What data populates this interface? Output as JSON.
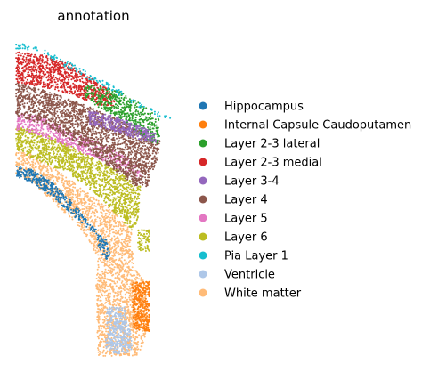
{
  "chart_data": {
    "type": "scatter",
    "title": "annotation",
    "xlabel": "",
    "ylabel": "",
    "grid": false,
    "axes_visible": false,
    "legend_position": "right",
    "series": [
      {
        "name": "Hippocampus",
        "color": "#1f77b4",
        "regions": [
          [
            [
              18,
              186
            ],
            [
              35,
              190
            ],
            [
              55,
              202
            ],
            [
              80,
              225
            ],
            [
              100,
              250
            ],
            [
              108,
              258
            ],
            [
              105,
              262
            ],
            [
              85,
              245
            ],
            [
              60,
              222
            ],
            [
              35,
              205
            ],
            [
              18,
              198
            ]
          ],
          [
            [
              108,
              262
            ],
            [
              120,
              270
            ],
            [
              124,
              290
            ],
            [
              118,
              292
            ],
            [
              110,
              275
            ]
          ]
        ],
        "density": 0.28
      },
      {
        "name": "Internal Capsule Caudoputamen",
        "color": "#ff7f0e",
        "regions": [
          [
            [
              148,
              318
            ],
            [
              168,
              316
            ],
            [
              168,
              372
            ],
            [
              150,
              370
            ]
          ]
        ],
        "density": 0.35
      },
      {
        "name": "Layer 2-3 lateral",
        "color": "#2ca02c",
        "regions": [
          [
            [
              95,
              95
            ],
            [
              130,
              100
            ],
            [
              160,
              118
            ],
            [
              178,
              132
            ],
            [
              180,
              160
            ],
            [
              170,
              162
            ],
            [
              150,
              145
            ],
            [
              130,
              130
            ],
            [
              110,
              120
            ],
            [
              95,
              108
            ]
          ]
        ],
        "density": 0.22
      },
      {
        "name": "Layer 2-3 medial",
        "color": "#d62728",
        "regions": [
          [
            [
              18,
              58
            ],
            [
              50,
              62
            ],
            [
              80,
              72
            ],
            [
              105,
              90
            ],
            [
              125,
              102
            ],
            [
              130,
              120
            ],
            [
              110,
              118
            ],
            [
              90,
              110
            ],
            [
              60,
              100
            ],
            [
              30,
              95
            ],
            [
              18,
              92
            ]
          ]
        ],
        "density": 0.25
      },
      {
        "name": "Layer 3-4",
        "color": "#9467bd",
        "regions": [
          [
            [
              100,
              125
            ],
            [
              120,
              128
            ],
            [
              150,
              138
            ],
            [
              175,
              150
            ],
            [
              178,
              160
            ],
            [
              160,
              158
            ],
            [
              130,
              148
            ],
            [
              100,
              140
            ]
          ]
        ],
        "density": 0.3
      },
      {
        "name": "Layer 4",
        "color": "#8c564b",
        "regions": [
          [
            [
              18,
              92
            ],
            [
              45,
              100
            ],
            [
              80,
              112
            ],
            [
              110,
              124
            ],
            [
              145,
              140
            ],
            [
              180,
              158
            ],
            [
              178,
              175
            ],
            [
              165,
              210
            ],
            [
              150,
              208
            ],
            [
              120,
              185
            ],
            [
              85,
              160
            ],
            [
              50,
              140
            ],
            [
              18,
              130
            ]
          ]
        ],
        "density": 0.25
      },
      {
        "name": "Layer 5",
        "color": "#e377c2",
        "regions": [
          [
            [
              18,
              125
            ],
            [
              50,
              132
            ],
            [
              80,
              148
            ],
            [
              110,
              160
            ],
            [
              140,
              175
            ],
            [
              160,
              192
            ],
            [
              158,
              200
            ],
            [
              130,
              188
            ],
            [
              100,
              175
            ],
            [
              70,
              162
            ],
            [
              40,
              150
            ],
            [
              18,
              146
            ]
          ]
        ],
        "density": 0.2
      },
      {
        "name": "Layer 6",
        "color": "#bcbd22",
        "regions": [
          [
            [
              18,
              142
            ],
            [
              45,
              148
            ],
            [
              75,
              162
            ],
            [
              110,
              180
            ],
            [
              140,
              195
            ],
            [
              158,
              210
            ],
            [
              155,
              245
            ],
            [
              150,
              262
            ],
            [
              135,
              245
            ],
            [
              110,
              220
            ],
            [
              85,
              200
            ],
            [
              55,
              185
            ],
            [
              30,
              175
            ],
            [
              18,
              168
            ]
          ],
          [
            [
              155,
              258
            ],
            [
              168,
              258
            ],
            [
              168,
              282
            ],
            [
              155,
              282
            ]
          ]
        ],
        "density": 0.25
      },
      {
        "name": "Pia Layer 1",
        "color": "#17becf",
        "regions": [
          [
            [
              18,
              48
            ],
            [
              40,
              52
            ],
            [
              70,
              65
            ],
            [
              100,
              82
            ],
            [
              130,
              98
            ],
            [
              160,
              118
            ],
            [
              192,
              132
            ],
            [
              190,
              136
            ],
            [
              158,
              122
            ],
            [
              128,
              104
            ],
            [
              98,
              88
            ],
            [
              68,
              72
            ],
            [
              38,
              58
            ],
            [
              18,
              55
            ]
          ]
        ],
        "density": 0.12
      },
      {
        "name": "Ventricle",
        "color": "#aec7e8",
        "regions": [
          [
            [
              120,
              345
            ],
            [
              140,
              345
            ],
            [
              148,
              380
            ],
            [
              148,
              395
            ],
            [
              130,
              398
            ],
            [
              118,
              390
            ],
            [
              120,
              370
            ]
          ]
        ],
        "density": 0.3
      },
      {
        "name": "White matter",
        "color": "#ffbb78",
        "regions": [
          [
            [
              18,
              168
            ],
            [
              40,
              175
            ],
            [
              70,
              195
            ],
            [
              100,
              218
            ],
            [
              125,
              235
            ],
            [
              148,
              260
            ],
            [
              150,
              300
            ],
            [
              165,
              320
            ],
            [
              165,
              375
            ],
            [
              155,
              400
            ],
            [
              110,
              400
            ],
            [
              108,
              320
            ],
            [
              110,
              290
            ],
            [
              100,
              270
            ],
            [
              85,
              250
            ],
            [
              60,
              228
            ],
            [
              40,
              208
            ],
            [
              18,
              195
            ]
          ]
        ],
        "density": 0.22
      }
    ]
  }
}
